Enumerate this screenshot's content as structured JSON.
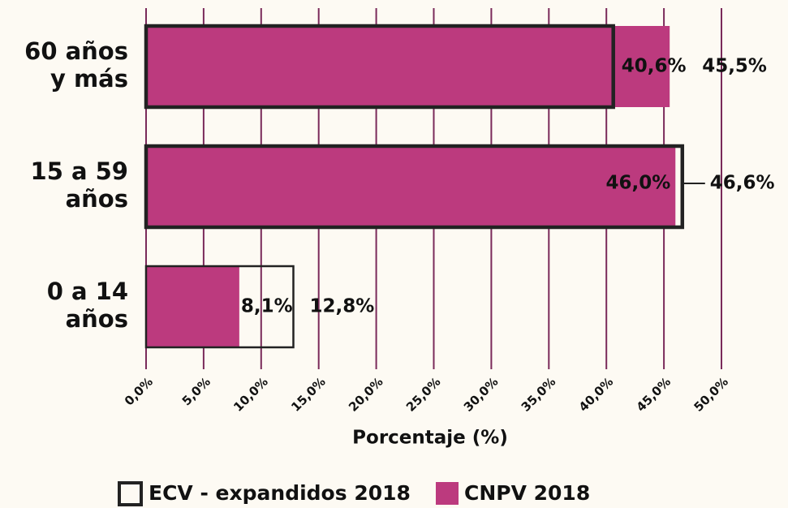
{
  "chart_data": {
    "type": "bar",
    "orientation": "horizontal",
    "xlabel": "Porcentaje (%)",
    "categories": [
      [
        "60 años",
        "y más"
      ],
      [
        "15 a 59",
        "años"
      ],
      [
        "0 a 14",
        "años"
      ]
    ],
    "series": [
      {
        "name": "ECV - expandidos 2018",
        "color": "#222222",
        "style": "outline",
        "values": [
          40.6,
          46.6,
          12.8
        ],
        "value_labels": [
          "40,6%",
          "46,6%",
          "12,8%"
        ]
      },
      {
        "name": "CNPV 2018",
        "color": "#bc3a7e",
        "style": "filled",
        "values": [
          45.5,
          46.0,
          8.1
        ],
        "value_labels": [
          "45,5%",
          "46,0%",
          "8,1%"
        ]
      }
    ],
    "xlim": [
      0,
      50
    ],
    "xticks": [
      {
        "value": 0,
        "label": "0,0%"
      },
      {
        "value": 5,
        "label": "5,0%"
      },
      {
        "value": 10,
        "label": "10,0%"
      },
      {
        "value": 15,
        "label": "15,0%"
      },
      {
        "value": 20,
        "label": "20,0%"
      },
      {
        "value": 25,
        "label": "25,0%"
      },
      {
        "value": 30,
        "label": "30,0%"
      },
      {
        "value": 35,
        "label": "35,0%"
      },
      {
        "value": 40,
        "label": "40,0%"
      },
      {
        "value": 45,
        "label": "45,0%"
      },
      {
        "value": 50,
        "label": "50,0%"
      }
    ],
    "grid": true,
    "grid_color": "#7a2a5a",
    "legend": "bottom"
  }
}
